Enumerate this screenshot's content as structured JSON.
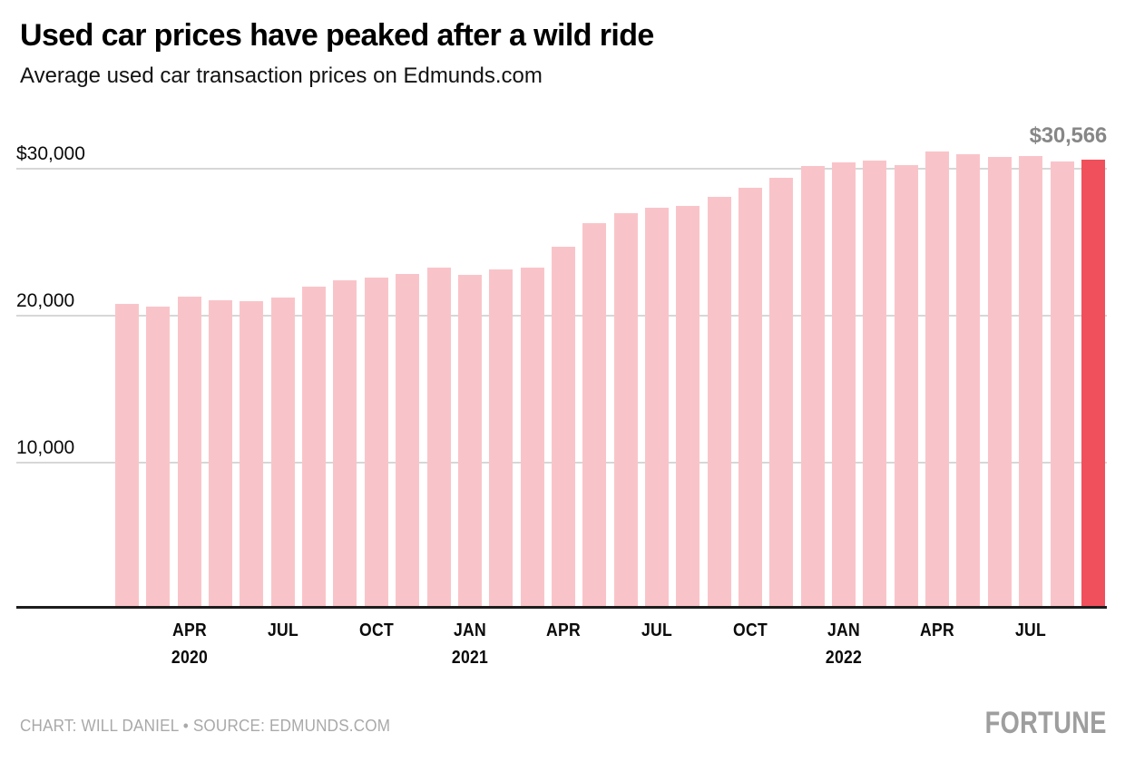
{
  "header": {
    "title": "Used car prices have peaked after a wild ride",
    "subtitle": "Average used car transaction prices on Edmunds.com"
  },
  "footer": {
    "credit": "CHART: WILL DANIEL • SOURCE: EDMUNDS.COM",
    "brand": "FORTUNE"
  },
  "chart_data": {
    "type": "bar",
    "title": "Used car prices have peaked after a wild ride",
    "subtitle": "Average used car transaction prices on Edmunds.com",
    "unit": "USD",
    "categories": [
      "Feb 2020",
      "Mar 2020",
      "Apr 2020",
      "May 2020",
      "Jun 2020",
      "Jul 2020",
      "Aug 2020",
      "Sep 2020",
      "Oct 2020",
      "Nov 2020",
      "Dec 2020",
      "Jan 2021",
      "Feb 2021",
      "Mar 2021",
      "Apr 2021",
      "May 2021",
      "Jun 2021",
      "Jul 2021",
      "Aug 2021",
      "Sep 2021",
      "Oct 2021",
      "Nov 2021",
      "Dec 2021",
      "Jan 2022",
      "Feb 2022",
      "Mar 2022",
      "Apr 2022",
      "May 2022",
      "Jun 2022",
      "Jul 2022",
      "Aug 2022",
      "Sep 2022"
    ],
    "values": [
      20750,
      20550,
      21250,
      21000,
      20900,
      21150,
      21900,
      22350,
      22500,
      22750,
      23200,
      22700,
      23100,
      23200,
      24650,
      26250,
      26900,
      27300,
      27400,
      28050,
      28650,
      29350,
      30100,
      30400,
      30500,
      30200,
      31100,
      30950,
      30750,
      30800,
      30450,
      30566
    ],
    "highlight_index": 31,
    "highlight_label": "$30,566",
    "y_axis": {
      "ticks": [
        {
          "value": 30000,
          "label": "$30,000"
        },
        {
          "value": 20000,
          "label": "20,000"
        },
        {
          "value": 10000,
          "label": "10,000"
        }
      ],
      "range": [
        0,
        31100
      ],
      "grid": true
    },
    "x_axis": {
      "ticks": [
        {
          "index": 2,
          "label": "APR",
          "year": "2020"
        },
        {
          "index": 5,
          "label": "JUL"
        },
        {
          "index": 8,
          "label": "OCT"
        },
        {
          "index": 11,
          "label": "JAN",
          "year": "2021"
        },
        {
          "index": 14,
          "label": "APR"
        },
        {
          "index": 17,
          "label": "JUL"
        },
        {
          "index": 20,
          "label": "OCT"
        },
        {
          "index": 23,
          "label": "JAN",
          "year": "2022"
        },
        {
          "index": 26,
          "label": "APR"
        },
        {
          "index": 29,
          "label": "JUL"
        }
      ]
    },
    "legend": "none",
    "colors": {
      "bar": "#f9c4c9",
      "highlight": "#f0505b",
      "gridline": "#d7d7d7",
      "axis": "#1d1d1d",
      "annotation": "#878787",
      "footer_gray": "#a9a9a9",
      "brand_gray": "#9e9e9e"
    }
  }
}
